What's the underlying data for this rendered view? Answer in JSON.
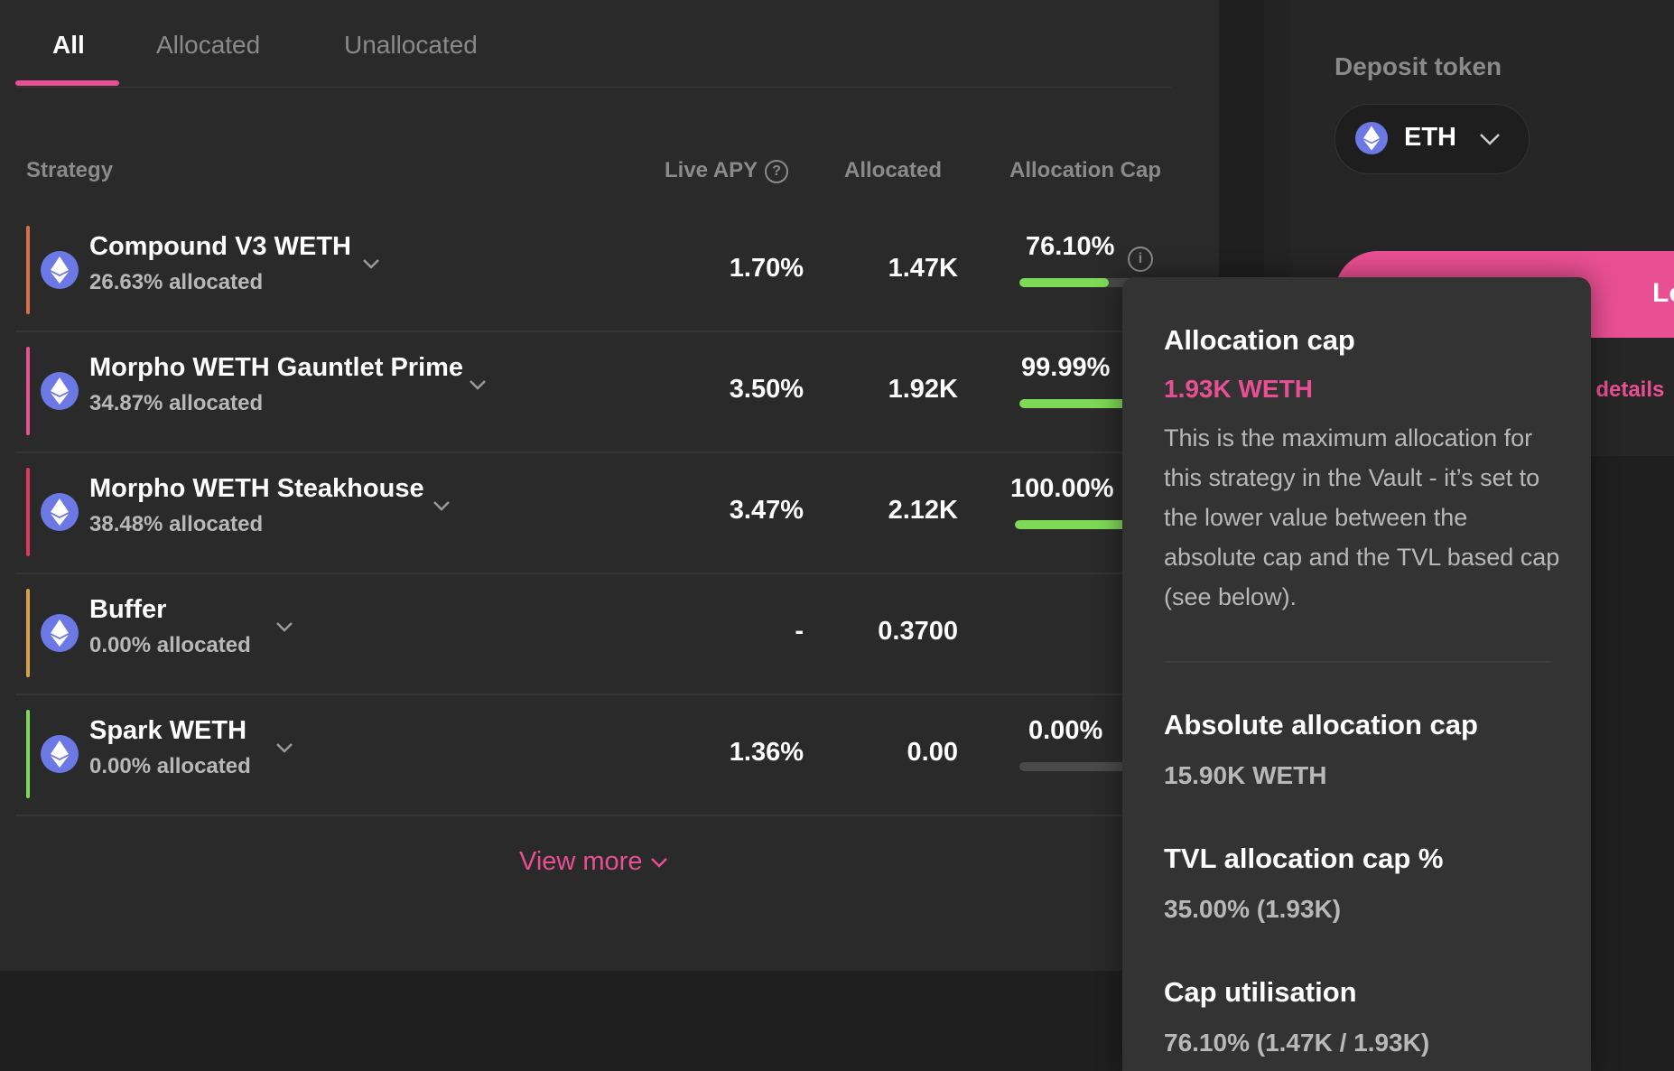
{
  "tabs": [
    {
      "label": "All",
      "active": true
    },
    {
      "label": "Allocated",
      "active": false
    },
    {
      "label": "Unallocated",
      "active": false
    }
  ],
  "table": {
    "headers": {
      "strategy": "Strategy",
      "live_apy": "Live APY",
      "allocated": "Allocated",
      "allocation_cap": "Allocation Cap"
    },
    "rows": [
      {
        "name": "Compound V3 WETH",
        "allocated_pct": "26.63% allocated",
        "apy": "1.70%",
        "allocated": "1.47K",
        "cap": "76.10%",
        "cap_fill": 0.761,
        "accent": "#d9704a",
        "show_info": true
      },
      {
        "name": "Morpho WETH Gauntlet Prime",
        "allocated_pct": "34.87% allocated",
        "apy": "3.50%",
        "allocated": "1.92K",
        "cap": "99.99%",
        "cap_fill": 0.9999,
        "accent": "#e94f93"
      },
      {
        "name": "Morpho WETH Steakhouse",
        "allocated_pct": "38.48% allocated",
        "apy": "3.47%",
        "allocated": "2.12K",
        "cap": "100.00%",
        "cap_fill": 1.0,
        "accent": "#e0375d"
      },
      {
        "name": "Buffer",
        "allocated_pct": "0.00% allocated",
        "apy": "-",
        "allocated": "0.3700",
        "cap": "",
        "cap_fill": null,
        "accent": "#d9a04a"
      },
      {
        "name": "Spark WETH",
        "allocated_pct": "0.00% allocated",
        "apy": "1.36%",
        "allocated": "0.00",
        "cap": "0.00%",
        "cap_fill": 0.0,
        "accent": "#7ed957"
      }
    ],
    "view_more": "View more"
  },
  "side_panel": {
    "deposit_label": "Deposit token",
    "token": "ETH",
    "button_label": "Lo",
    "details_link": "/ details"
  },
  "tooltip": {
    "title": "Allocation cap",
    "accent_value": "1.93K WETH",
    "description": "This is the maximum allocation for this strategy in the Vault - it’s set to the lower value between the absolute cap and the TVL based cap (see below).",
    "sections": [
      {
        "title": "Absolute allocation cap",
        "value": "15.90K WETH"
      },
      {
        "title": "TVL allocation cap %",
        "value": "35.00% (1.93K)"
      },
      {
        "title": "Cap utilisation",
        "value": "76.10% (1.47K / 1.93K)"
      }
    ]
  },
  "colors": {
    "accent_pink": "#e94f93",
    "progress_green": "#7ed957",
    "eth_purple": "#6c78e4"
  }
}
